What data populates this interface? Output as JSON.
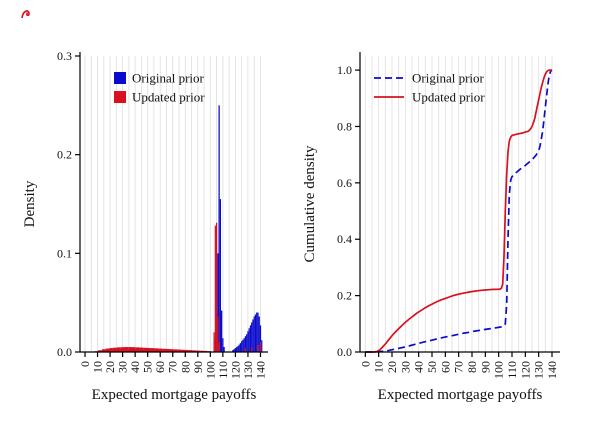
{
  "figure": {
    "background": "#ffffff",
    "grid_color": "#dddddd",
    "axis_color": "#000000",
    "accent_blue": "#0b0bcd",
    "accent_red": "#d8101f"
  },
  "chart_data": [
    {
      "id": "density",
      "type": "bar",
      "title": "",
      "xlabel": "Expected mortgage payoffs",
      "ylabel": "Density",
      "xlim": [
        -4,
        146
      ],
      "ylim": [
        0,
        0.3
      ],
      "xticks": [
        0,
        10,
        20,
        30,
        40,
        50,
        60,
        70,
        80,
        90,
        100,
        110,
        120,
        130,
        140
      ],
      "ytick_values": [
        0,
        0.1,
        0.2,
        0.3
      ],
      "ytick_labels": [
        "0.0",
        "0.1",
        "0.2",
        "0.3"
      ],
      "grid": "vertical",
      "grid_step": 5,
      "legend": {
        "style": "swatch",
        "position": "top-left-inside",
        "entries": [
          {
            "label": "Original prior",
            "color": "#0b0bcd"
          },
          {
            "label": "Updated prior",
            "color": "#d8101f"
          }
        ]
      },
      "series": [
        {
          "name": "Original prior",
          "color": "#0b0bcd",
          "bars": [
            [
              12,
              0.001,
              3
            ],
            [
              15,
              0.0014,
              3
            ],
            [
              18,
              0.0018,
              3
            ],
            [
              21,
              0.0021,
              3
            ],
            [
              24,
              0.0024,
              3
            ],
            [
              27,
              0.0026,
              3
            ],
            [
              30,
              0.0028,
              3
            ],
            [
              33,
              0.0029,
              3
            ],
            [
              36,
              0.003,
              3
            ],
            [
              39,
              0.0029,
              3
            ],
            [
              42,
              0.0028,
              3
            ],
            [
              45,
              0.0027,
              3
            ],
            [
              48,
              0.0025,
              3
            ],
            [
              51,
              0.0024,
              3
            ],
            [
              54,
              0.0022,
              3
            ],
            [
              57,
              0.0021,
              3
            ],
            [
              60,
              0.0019,
              3
            ],
            [
              63,
              0.0018,
              3
            ],
            [
              66,
              0.0016,
              3
            ],
            [
              69,
              0.0015,
              3
            ],
            [
              72,
              0.0013,
              3
            ],
            [
              75,
              0.0012,
              3
            ],
            [
              78,
              0.0011,
              3
            ],
            [
              81,
              0.001,
              3
            ],
            [
              84,
              0.0009,
              3
            ],
            [
              87,
              0.0008,
              3
            ],
            [
              90,
              0.0007,
              3
            ],
            [
              93,
              0.0006,
              3
            ],
            [
              96,
              0.0005,
              3
            ],
            [
              99,
              0.0004,
              3
            ],
            [
              104,
              0.012,
              1
            ],
            [
              105,
              0.038,
              1
            ],
            [
              106,
              0.1,
              1
            ],
            [
              107,
              0.25,
              1
            ],
            [
              108,
              0.155,
              1
            ],
            [
              109,
              0.042,
              1
            ],
            [
              110,
              0.014,
              1
            ],
            [
              111,
              0.005,
              1
            ],
            [
              118,
              0.002,
              1
            ],
            [
              119,
              0.003,
              1
            ],
            [
              120,
              0.004,
              1
            ],
            [
              121,
              0.005,
              1
            ],
            [
              122,
              0.006,
              1
            ],
            [
              123,
              0.0075,
              1
            ],
            [
              124,
              0.009,
              1
            ],
            [
              125,
              0.011,
              1
            ],
            [
              126,
              0.0125,
              1
            ],
            [
              127,
              0.014,
              1
            ],
            [
              128,
              0.016,
              1
            ],
            [
              129,
              0.018,
              1
            ],
            [
              130,
              0.021,
              1
            ],
            [
              131,
              0.024,
              1
            ],
            [
              132,
              0.027,
              1
            ],
            [
              133,
              0.03,
              1
            ],
            [
              134,
              0.033,
              1
            ],
            [
              135,
              0.036,
              1
            ],
            [
              136,
              0.038,
              1
            ],
            [
              137,
              0.04,
              1
            ],
            [
              138,
              0.04,
              1
            ],
            [
              139,
              0.036,
              1
            ],
            [
              140,
              0.027,
              1
            ],
            [
              141,
              0.012,
              1
            ]
          ]
        },
        {
          "name": "Updated prior",
          "color": "#d8101f",
          "bars": [
            [
              9,
              0.0008,
              3
            ],
            [
              12,
              0.0018,
              3
            ],
            [
              15,
              0.0028,
              3
            ],
            [
              18,
              0.0035,
              3
            ],
            [
              21,
              0.004,
              3
            ],
            [
              24,
              0.0044,
              3
            ],
            [
              27,
              0.0047,
              3
            ],
            [
              30,
              0.0049,
              3
            ],
            [
              33,
              0.005,
              3
            ],
            [
              36,
              0.005,
              3
            ],
            [
              39,
              0.0049,
              3
            ],
            [
              42,
              0.0047,
              3
            ],
            [
              45,
              0.0045,
              3
            ],
            [
              48,
              0.0043,
              3
            ],
            [
              51,
              0.0041,
              3
            ],
            [
              54,
              0.0039,
              3
            ],
            [
              57,
              0.0037,
              3
            ],
            [
              60,
              0.0035,
              3
            ],
            [
              63,
              0.0033,
              3
            ],
            [
              66,
              0.0031,
              3
            ],
            [
              69,
              0.0029,
              3
            ],
            [
              72,
              0.0027,
              3
            ],
            [
              75,
              0.0025,
              3
            ],
            [
              78,
              0.0023,
              3
            ],
            [
              81,
              0.0021,
              3
            ],
            [
              84,
              0.0019,
              3
            ],
            [
              87,
              0.0017,
              3
            ],
            [
              90,
              0.0015,
              3
            ],
            [
              93,
              0.0013,
              3
            ],
            [
              96,
              0.0011,
              3
            ],
            [
              99,
              0.0009,
              3
            ],
            [
              103,
              0.02,
              1
            ],
            [
              104,
              0.128,
              1
            ],
            [
              105,
              0.131,
              1
            ],
            [
              106,
              0.036,
              1
            ],
            [
              107,
              0.01,
              1
            ],
            [
              128,
              0.004,
              1
            ],
            [
              133,
              0.005,
              1
            ],
            [
              138,
              0.007,
              1
            ],
            [
              140,
              0.01,
              1
            ]
          ]
        }
      ]
    },
    {
      "id": "cumulative",
      "type": "line",
      "title": "",
      "xlabel": "Expected mortgage payoffs",
      "ylabel": "Cumulative density",
      "xlim": [
        -4,
        146
      ],
      "ylim": [
        0,
        1.05
      ],
      "xticks": [
        0,
        10,
        20,
        30,
        40,
        50,
        60,
        70,
        80,
        90,
        100,
        110,
        120,
        130,
        140
      ],
      "ytick_values": [
        0,
        0.2,
        0.4,
        0.6,
        0.8,
        1.0
      ],
      "ytick_labels": [
        "0.0",
        "0.2",
        "0.4",
        "0.6",
        "0.8",
        "1.0"
      ],
      "grid": "vertical",
      "grid_step": 5,
      "legend": {
        "style": "line",
        "position": "top-left-inside",
        "entries": [
          {
            "label": "Original prior",
            "color": "#0b0bcd",
            "dash": "7 4"
          },
          {
            "label": "Updated prior",
            "color": "#d8101f",
            "dash": ""
          }
        ]
      },
      "series": [
        {
          "name": "Original prior",
          "color": "#0b0bcd",
          "dash": "7 4",
          "points": [
            [
              0,
              0
            ],
            [
              6,
              0
            ],
            [
              10,
              0.001
            ],
            [
              14,
              0.003
            ],
            [
              18,
              0.006
            ],
            [
              22,
              0.01
            ],
            [
              26,
              0.014
            ],
            [
              30,
              0.018
            ],
            [
              34,
              0.023
            ],
            [
              38,
              0.028
            ],
            [
              42,
              0.033
            ],
            [
              46,
              0.038
            ],
            [
              50,
              0.042
            ],
            [
              54,
              0.047
            ],
            [
              58,
              0.051
            ],
            [
              62,
              0.055
            ],
            [
              66,
              0.059
            ],
            [
              70,
              0.063
            ],
            [
              74,
              0.067
            ],
            [
              78,
              0.07
            ],
            [
              82,
              0.074
            ],
            [
              86,
              0.077
            ],
            [
              90,
              0.08
            ],
            [
              94,
              0.083
            ],
            [
              98,
              0.086
            ],
            [
              102,
              0.089
            ],
            [
              104,
              0.092
            ],
            [
              105,
              0.1
            ],
            [
              106,
              0.17
            ],
            [
              107,
              0.4
            ],
            [
              108,
              0.56
            ],
            [
              109,
              0.61
            ],
            [
              110,
              0.622
            ],
            [
              112,
              0.632
            ],
            [
              114,
              0.64
            ],
            [
              116,
              0.648
            ],
            [
              118,
              0.655
            ],
            [
              120,
              0.662
            ],
            [
              122,
              0.67
            ],
            [
              124,
              0.678
            ],
            [
              126,
              0.687
            ],
            [
              128,
              0.698
            ],
            [
              130,
              0.714
            ],
            [
              131,
              0.73
            ],
            [
              132,
              0.755
            ],
            [
              133,
              0.785
            ],
            [
              134,
              0.825
            ],
            [
              135,
              0.868
            ],
            [
              136,
              0.912
            ],
            [
              137,
              0.952
            ],
            [
              138,
              0.982
            ],
            [
              139,
              0.996
            ],
            [
              140,
              1.0
            ]
          ]
        },
        {
          "name": "Updated prior",
          "color": "#d8101f",
          "dash": "",
          "points": [
            [
              0,
              0
            ],
            [
              7,
              0
            ],
            [
              9,
              0.002
            ],
            [
              11,
              0.008
            ],
            [
              13,
              0.018
            ],
            [
              15,
              0.028
            ],
            [
              17,
              0.04
            ],
            [
              19,
              0.052
            ],
            [
              21,
              0.063
            ],
            [
              24,
              0.078
            ],
            [
              27,
              0.092
            ],
            [
              30,
              0.105
            ],
            [
              33,
              0.117
            ],
            [
              36,
              0.128
            ],
            [
              39,
              0.139
            ],
            [
              42,
              0.148
            ],
            [
              45,
              0.157
            ],
            [
              48,
              0.165
            ],
            [
              51,
              0.172
            ],
            [
              54,
              0.179
            ],
            [
              57,
              0.185
            ],
            [
              60,
              0.19
            ],
            [
              63,
              0.195
            ],
            [
              66,
              0.2
            ],
            [
              69,
              0.204
            ],
            [
              72,
              0.207
            ],
            [
              75,
              0.21
            ],
            [
              78,
              0.213
            ],
            [
              81,
              0.215
            ],
            [
              84,
              0.217
            ],
            [
              87,
              0.219
            ],
            [
              90,
              0.22
            ],
            [
              93,
              0.221
            ],
            [
              96,
              0.222
            ],
            [
              99,
              0.2225
            ],
            [
              101,
              0.223
            ],
            [
              102,
              0.226
            ],
            [
              103,
              0.24
            ],
            [
              104,
              0.34
            ],
            [
              105,
              0.5
            ],
            [
              106,
              0.63
            ],
            [
              107,
              0.71
            ],
            [
              108,
              0.748
            ],
            [
              109,
              0.762
            ],
            [
              110,
              0.768
            ],
            [
              112,
              0.771
            ],
            [
              114,
              0.773
            ],
            [
              116,
              0.775
            ],
            [
              118,
              0.777
            ],
            [
              120,
              0.78
            ],
            [
              122,
              0.783
            ],
            [
              123,
              0.786
            ],
            [
              124,
              0.792
            ],
            [
              125,
              0.8
            ],
            [
              126,
              0.812
            ],
            [
              127,
              0.828
            ],
            [
              128,
              0.85
            ],
            [
              129,
              0.872
            ],
            [
              130,
              0.895
            ],
            [
              131,
              0.917
            ],
            [
              132,
              0.938
            ],
            [
              133,
              0.957
            ],
            [
              134,
              0.973
            ],
            [
              135,
              0.985
            ],
            [
              136,
              0.994
            ],
            [
              137,
              0.999
            ],
            [
              138,
              1.0
            ],
            [
              140,
              1.0
            ]
          ]
        }
      ]
    }
  ]
}
